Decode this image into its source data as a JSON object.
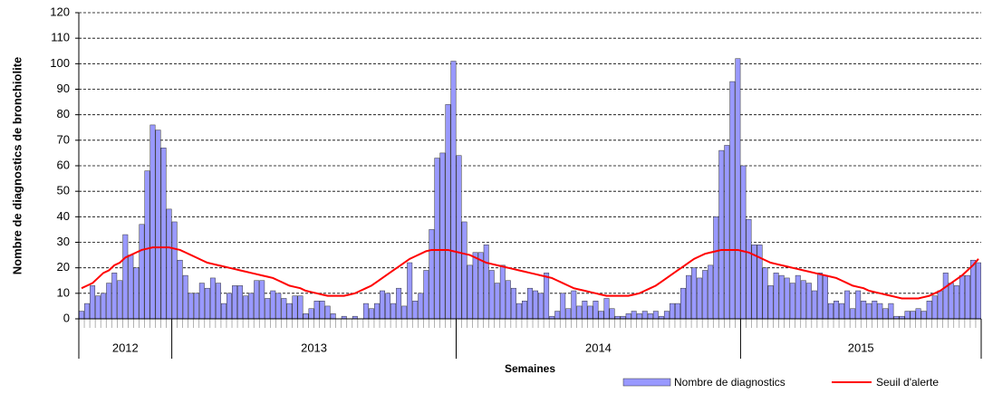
{
  "chart_data": {
    "type": "bar_line",
    "ylabel": "Nombre de diagnostics de bronchiolite",
    "xlabel": "Semaines",
    "ylim": [
      0,
      120
    ],
    "yticks": [
      0,
      10,
      20,
      30,
      40,
      50,
      60,
      70,
      80,
      90,
      100,
      110,
      120
    ],
    "grid": true,
    "groups": [
      {
        "label": "2012",
        "size": 17
      },
      {
        "label": "2013",
        "size": 52
      },
      {
        "label": "2014",
        "size": 52
      },
      {
        "label": "2015",
        "size": 44
      }
    ],
    "legend": "bottom-right",
    "series": [
      {
        "name": "Nombre de diagnostics",
        "type": "bar",
        "color": "#9999ff",
        "values": [
          3,
          6,
          13,
          9,
          10,
          14,
          18,
          15,
          33,
          25,
          20,
          37,
          58,
          76,
          74,
          67,
          43,
          38,
          23,
          17,
          10,
          10,
          14,
          12,
          16,
          14,
          6,
          10,
          13,
          13,
          9,
          10,
          15,
          15,
          8,
          11,
          10,
          8,
          6,
          9,
          9,
          2,
          4,
          7,
          7,
          5,
          2,
          0,
          1,
          0,
          1,
          0,
          6,
          4,
          6,
          11,
          10,
          6,
          12,
          5,
          22,
          7,
          10,
          19,
          35,
          63,
          65,
          84,
          101,
          64,
          38,
          21,
          26,
          26,
          29,
          19,
          14,
          21,
          15,
          12,
          6,
          7,
          12,
          11,
          10,
          18,
          1,
          3,
          10,
          4,
          11,
          5,
          7,
          5,
          7,
          3,
          8,
          4,
          1,
          1,
          2,
          3,
          2,
          3,
          2,
          3,
          1,
          3,
          6,
          6,
          12,
          17,
          20,
          16,
          19,
          21,
          40,
          66,
          68,
          93,
          102,
          60,
          39,
          29,
          29,
          20,
          13,
          18,
          17,
          16,
          14,
          17,
          15,
          14,
          11,
          18,
          17,
          6,
          7,
          6,
          11,
          4,
          11,
          7,
          6,
          7,
          6,
          4,
          6,
          1,
          1,
          3,
          3,
          4,
          3,
          7,
          9,
          11,
          18,
          14,
          13,
          17,
          17,
          23,
          22
        ]
      },
      {
        "name": "Seuil d'alerte",
        "type": "line",
        "color": "#ff0000",
        "values": [
          12,
          13,
          14,
          16,
          18,
          19,
          21,
          22,
          24,
          25,
          26,
          27,
          27.5,
          28,
          28,
          28,
          28,
          27.5,
          27,
          26,
          25,
          24,
          23,
          22,
          21.5,
          21,
          20.5,
          20,
          19.5,
          19,
          18.5,
          18,
          17.5,
          17,
          16.5,
          16,
          15,
          14,
          13,
          12.5,
          12,
          11,
          10.5,
          10,
          9.5,
          9,
          9,
          9,
          9,
          9.5,
          10,
          11,
          12,
          13,
          14.5,
          16,
          17.5,
          19,
          20.5,
          22,
          23.5,
          24.5,
          25.5,
          26.5,
          27,
          27,
          27,
          27,
          26.5,
          26,
          25.5,
          25,
          24,
          23,
          22,
          21.5,
          21,
          20.5,
          20,
          19.5,
          19,
          18.5,
          18,
          17.5,
          17,
          16.5,
          16,
          15,
          14,
          13,
          12,
          11.5,
          11,
          10.5,
          10,
          9.5,
          9,
          9,
          9,
          9,
          9,
          9.5,
          10,
          11,
          12,
          13,
          14.5,
          16,
          17.5,
          19,
          20.5,
          22,
          23.5,
          24.5,
          25.5,
          26,
          26.5,
          27,
          27,
          27,
          27,
          26.5,
          26,
          25,
          24,
          23,
          22,
          21.5,
          21,
          20.5,
          20,
          19.5,
          19,
          18.5,
          18,
          17.5,
          17,
          16.5,
          16,
          15,
          14,
          13,
          12.5,
          12,
          11,
          10.5,
          10,
          9.5,
          9,
          8.5,
          8,
          8,
          8,
          8,
          8.5,
          9,
          10,
          11,
          12.5,
          14,
          15.5,
          17,
          19,
          21,
          23.5
        ]
      }
    ]
  }
}
